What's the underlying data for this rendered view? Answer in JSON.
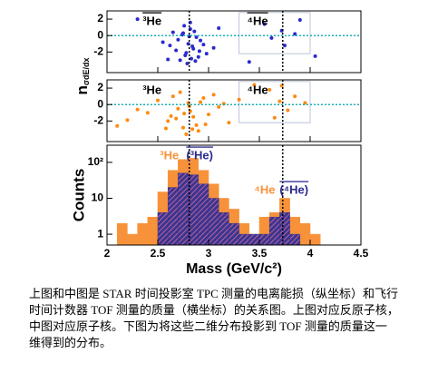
{
  "chart_data": [
    {
      "type": "scatter",
      "color": "#2a2ad0",
      "x": [
        2.62,
        2.7,
        2.75,
        2.78,
        2.8,
        2.82,
        2.85,
        2.88,
        2.9,
        2.95,
        2.72,
        2.76,
        2.83,
        2.86,
        2.92,
        2.68,
        2.79,
        2.81,
        2.84,
        2.77,
        2.74,
        2.87,
        2.91,
        2.65,
        2.98,
        3.05,
        2.55,
        2.6,
        3.1,
        2.82,
        3.55,
        3.62,
        3.72,
        3.75,
        3.85,
        3.9,
        4.05,
        3.4,
        2.3
      ],
      "y": [
        -1.2,
        -0.5,
        0.3,
        -2.1,
        -1.0,
        0.8,
        -1.6,
        -0.2,
        -2.6,
        -1.1,
        -3.0,
        1.2,
        -2.8,
        0.5,
        -0.6,
        -1.8,
        -3.4,
        -0.1,
        -1.3,
        -2.4,
        0.1,
        -3.1,
        -1.9,
        0.4,
        -2.2,
        -1.5,
        -0.8,
        -2.9,
        0.9,
        1.6,
        1.4,
        -0.3,
        0.6,
        -1.2,
        0.2,
        1.9,
        -2.5,
        -3.2,
        2.0
      ],
      "xlim": [
        2,
        4.5
      ],
      "ylim": [
        -4.5,
        3
      ],
      "yticks": [
        -2,
        0,
        2
      ],
      "vlines": [
        2.81,
        3.73
      ],
      "hline": 0,
      "box_x": [
        3.3,
        4.0
      ],
      "box_y": [
        -2.2,
        2.8
      ],
      "annotations": [
        {
          "text": "³He",
          "overline": true
        },
        {
          "text": "⁴He",
          "overline": true
        }
      ]
    },
    {
      "type": "scatter",
      "color": "#ff8a10",
      "x": [
        2.4,
        2.5,
        2.6,
        2.65,
        2.7,
        2.75,
        2.8,
        2.85,
        2.9,
        2.95,
        3.0,
        3.1,
        3.2,
        2.72,
        2.78,
        2.82,
        2.88,
        2.68,
        2.92,
        2.58,
        3.05,
        2.3,
        2.2,
        3.3,
        2.76,
        2.84,
        2.81,
        2.63,
        2.97,
        3.15,
        3.6,
        3.7,
        3.72,
        3.78,
        3.85,
        3.65,
        3.95,
        2.1,
        3.45
      ],
      "y": [
        -1.0,
        0.5,
        -2.0,
        1.0,
        -0.5,
        -2.8,
        0.2,
        -1.5,
        -3.2,
        0.8,
        -1.2,
        -0.3,
        -2.2,
        1.5,
        -3.6,
        -0.8,
        -2.5,
        -1.7,
        0.3,
        -2.9,
        1.2,
        -0.6,
        -1.9,
        0.6,
        -1.1,
        -3.0,
        -0.2,
        -1.4,
        -2.4,
        0.1,
        1.8,
        0.4,
        2.3,
        -0.7,
        1.0,
        -1.6,
        0.2,
        -2.6,
        2.4
      ],
      "xlim": [
        2,
        4.5
      ],
      "ylim": [
        -4.5,
        3
      ],
      "yticks": [
        -2,
        0,
        2
      ],
      "vlines": [
        2.81,
        3.73
      ],
      "hline": 0,
      "box_x": [
        3.3,
        4.0
      ],
      "box_y": [
        -2.2,
        2.8
      ],
      "ylabel_main": "n",
      "ylabel_sub": "σdE/dx",
      "annotations": [
        {
          "text": "³He",
          "overline": false
        },
        {
          "text": "⁴He",
          "overline": false
        }
      ]
    },
    {
      "type": "histogram",
      "xlabel": "Mass (GeV/c²)",
      "ylabel": "Counts",
      "log_y": true,
      "xlim": [
        2,
        4.5
      ],
      "xticks": [
        2,
        2.5,
        3,
        3.5,
        4,
        4.5
      ],
      "ylim": [
        0.5,
        300
      ],
      "yticks": [
        1,
        10,
        {
          "value": 100,
          "label": "10²"
        }
      ],
      "vlines": [
        2.81,
        3.73
      ],
      "series": [
        {
          "color": "#f7923a",
          "bins": [
            2.1,
            2.2,
            2.3,
            2.4,
            2.5,
            2.6,
            2.7,
            2.8,
            2.9,
            3.0,
            3.1,
            3.2,
            3.3,
            3.4,
            3.5,
            3.6,
            3.7,
            3.8,
            3.9,
            4.0,
            4.1
          ],
          "counts": [
            2,
            1,
            2,
            3,
            15,
            60,
            120,
            130,
            60,
            25,
            10,
            5,
            2,
            1,
            3,
            4,
            10,
            3,
            2,
            1
          ]
        },
        {
          "color": "#3b3590",
          "bins": [
            2.5,
            2.6,
            2.7,
            2.8,
            2.9,
            3.0,
            3.1,
            3.2,
            3.3,
            3.4,
            3.5,
            3.6,
            3.7,
            3.8,
            3.9
          ],
          "counts": [
            4,
            20,
            50,
            45,
            25,
            10,
            4,
            2,
            1,
            1,
            1,
            3,
            4,
            1
          ]
        }
      ],
      "annotations": [
        {
          "text": "³He",
          "color": "#f7923a",
          "overline": false
        },
        {
          "text": "(³He)",
          "color": "#2a2a90",
          "overline": true
        },
        {
          "text": "⁴He",
          "color": "#f7923a",
          "overline": false
        },
        {
          "text": "(⁴He)",
          "color": "#2a2a90",
          "overline": true
        }
      ]
    }
  ],
  "caption": [
    "上图和中图是 STAR 时间投影室 TPC 测量的电离能损（纵坐标）和飞行",
    "时间计数器 TOF 测量的质量（横坐标）的关系图。上图对应反原子核，",
    "中图对应原子核。下图为将这些二维分布投影到  TOF 测量的质量这一",
    "维得到的分布。"
  ]
}
